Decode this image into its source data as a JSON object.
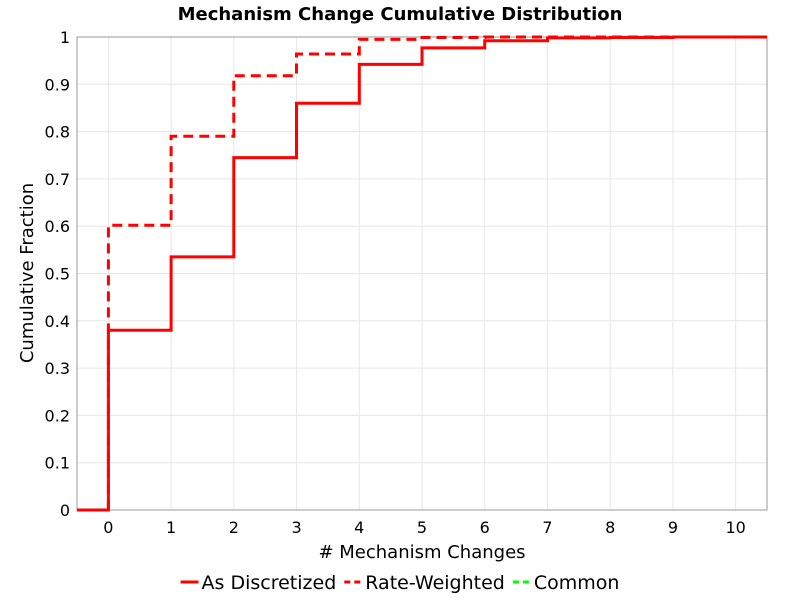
{
  "chart_data": {
    "type": "line",
    "title": "Mechanism Change Cumulative Distribution",
    "xlabel": "# Mechanism Changes",
    "ylabel": "Cumulative Fraction",
    "xlim": [
      -0.5,
      10.5
    ],
    "ylim": [
      0,
      1
    ],
    "x_ticks": [
      "0",
      "1",
      "2",
      "3",
      "4",
      "5",
      "6",
      "7",
      "8",
      "9",
      "10"
    ],
    "y_ticks": [
      "0",
      "0.1",
      "0.2",
      "0.3",
      "0.4",
      "0.5",
      "0.6",
      "0.7",
      "0.8",
      "0.9",
      "1"
    ],
    "grid": true,
    "legend_position": "bottom",
    "series": [
      {
        "name": "As Discretized",
        "color": "#ff0000",
        "style": "solid",
        "step": true,
        "x": [
          0,
          1,
          2,
          3,
          4,
          5,
          6,
          7,
          8,
          9,
          10
        ],
        "y": [
          0.38,
          0.535,
          0.745,
          0.86,
          0.942,
          0.977,
          0.992,
          0.998,
          0.999,
          1.0,
          1.0
        ]
      },
      {
        "name": "Rate-Weighted",
        "color": "#ff0000",
        "style": "dashed",
        "step": true,
        "x": [
          0,
          1,
          2,
          3,
          4,
          5,
          6,
          7,
          8,
          9,
          10
        ],
        "y": [
          0.602,
          0.79,
          0.918,
          0.964,
          0.995,
          0.999,
          1.0,
          1.0,
          1.0,
          1.0,
          1.0
        ]
      },
      {
        "name": "Common",
        "color": "#00ff00",
        "style": "dashed",
        "step": true,
        "x": [],
        "y": []
      }
    ]
  }
}
